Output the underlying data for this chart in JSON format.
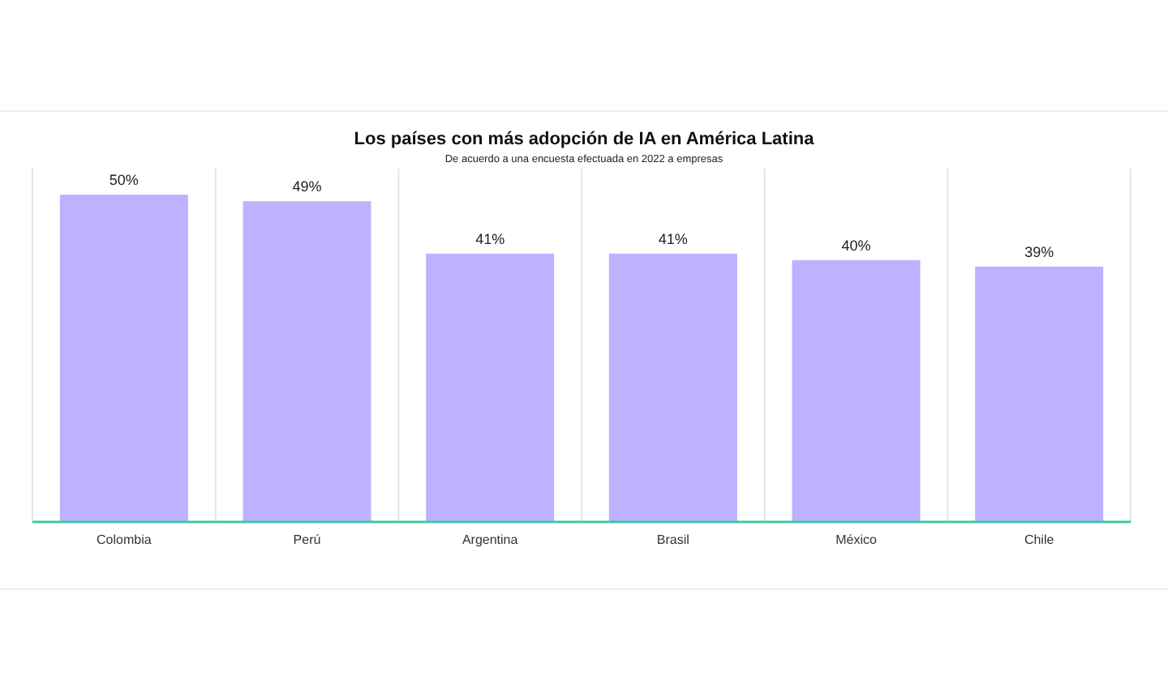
{
  "chart_data": {
    "type": "bar",
    "title": "Los países con más adopción de IA en América Latina",
    "subtitle": "De acuerdo a una encuesta efectuada en 2022 a empresas",
    "categories": [
      "Colombia",
      "Perú",
      "Argentina",
      "Brasil",
      "México",
      "Chile"
    ],
    "values": [
      50,
      49,
      41,
      41,
      40,
      39
    ],
    "color": "#bdb2ff",
    "value_labels": [
      "50%",
      "49%",
      "41%",
      "41%",
      "40%",
      "39%"
    ],
    "grid": "x"
  }
}
